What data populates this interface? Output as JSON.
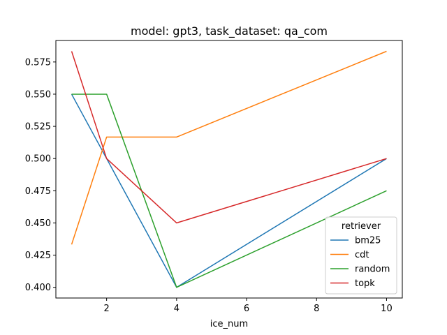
{
  "chart_data": {
    "type": "line",
    "title": "model: gpt3, task_dataset: qa_com",
    "xlabel": "ice_num",
    "ylabel": "",
    "x": [
      1,
      2,
      4,
      10
    ],
    "xlim": [
      0.55,
      10.45
    ],
    "ylim": [
      0.3917,
      0.5917
    ],
    "xticks": [
      2,
      4,
      6,
      8,
      10
    ],
    "xtick_labels": [
      "2",
      "4",
      "6",
      "8",
      "10"
    ],
    "yticks": [
      0.4,
      0.425,
      0.45,
      0.475,
      0.5,
      0.525,
      0.55,
      0.575
    ],
    "ytick_labels": [
      "0.400",
      "0.425",
      "0.450",
      "0.475",
      "0.500",
      "0.525",
      "0.550",
      "0.575"
    ],
    "grid": false,
    "legend": {
      "title": "retriever",
      "placement": "lower-right"
    },
    "series": [
      {
        "name": "bm25",
        "color": "#1f77b4",
        "values": [
          0.55,
          0.5,
          0.4,
          0.5
        ]
      },
      {
        "name": "cdt",
        "color": "#ff7f0e",
        "values": [
          0.4333,
          0.5167,
          0.5167,
          0.5833
        ]
      },
      {
        "name": "random",
        "color": "#2ca02c",
        "values": [
          0.55,
          0.55,
          0.4,
          0.475
        ]
      },
      {
        "name": "topk",
        "color": "#d62728",
        "values": [
          0.5833,
          0.5,
          0.45,
          0.5
        ]
      }
    ]
  }
}
